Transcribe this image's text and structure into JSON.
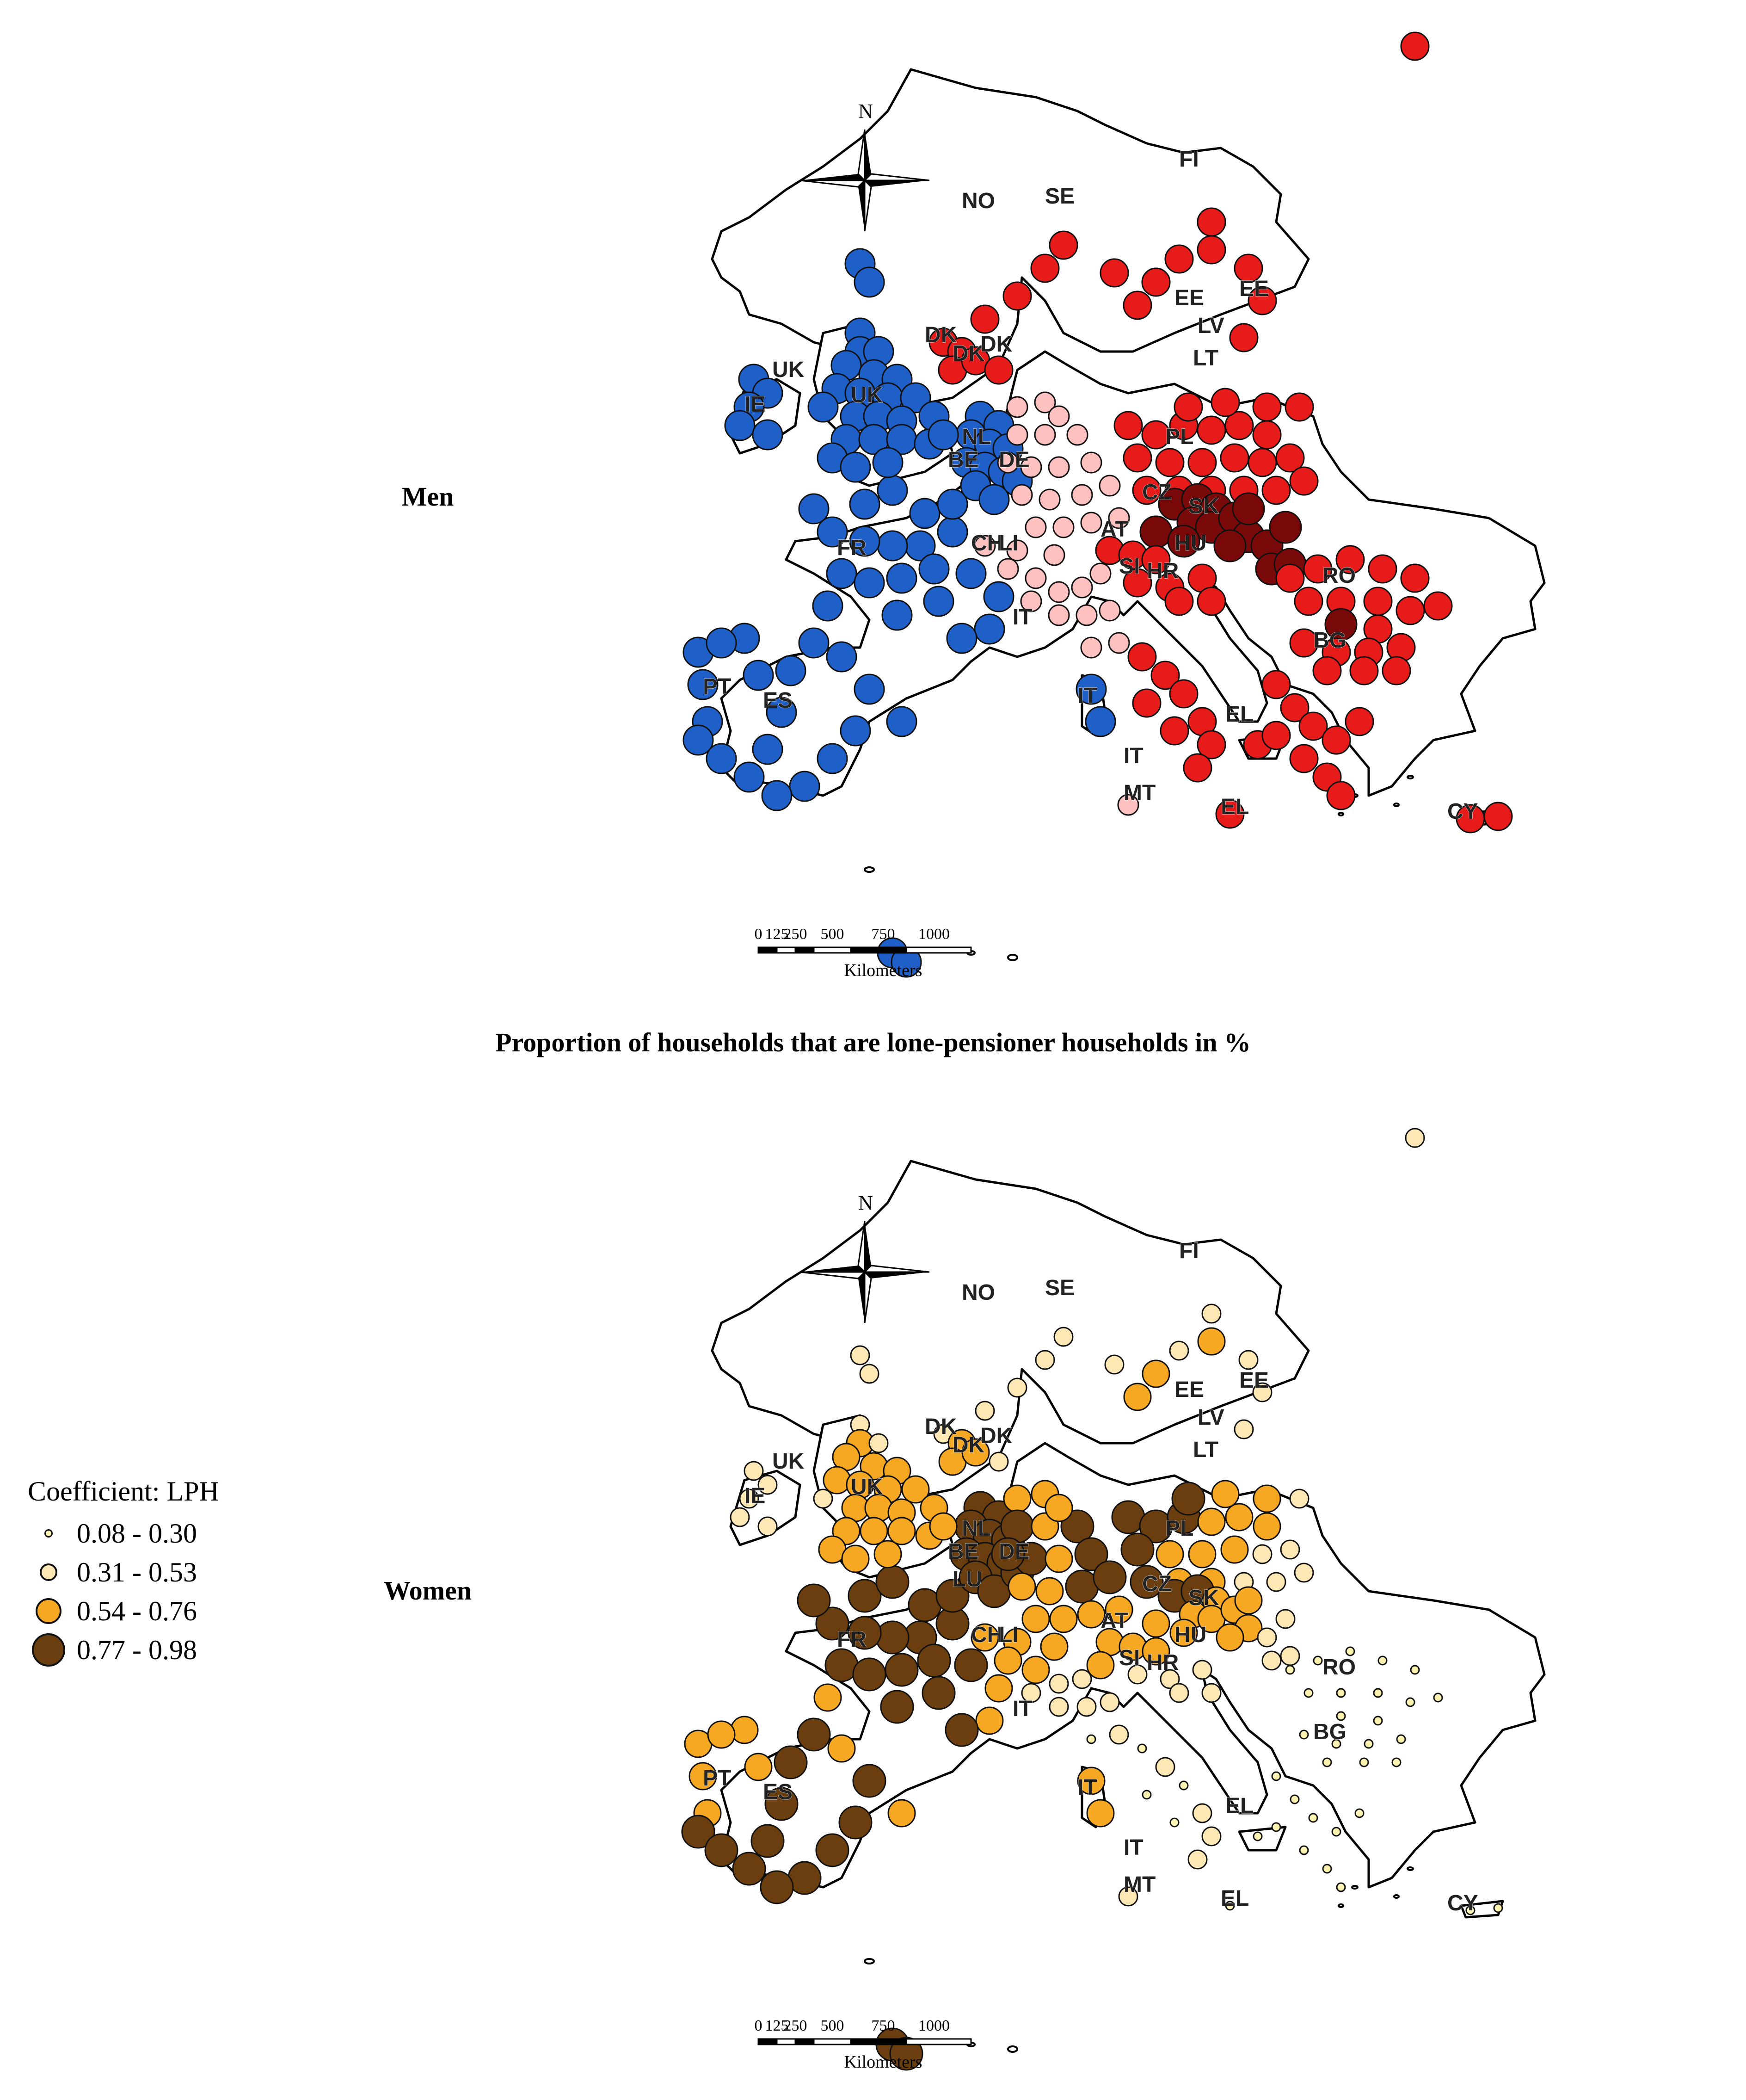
{
  "panels": [
    {
      "row_label": "Men",
      "north_label": "N",
      "scale_ticks": [
        "0",
        "125",
        "250",
        "500",
        "750",
        "1000"
      ],
      "scale_unit": "Kilometers",
      "country_labels": [
        "NO",
        "SE",
        "FI",
        "EE",
        "EE",
        "LV",
        "LT",
        "DK",
        "DK",
        "DK",
        "IE",
        "UK",
        "UK",
        "NL",
        "BE",
        "DE",
        "PL",
        "CZ",
        "SK",
        "AT",
        "HU",
        "CH",
        "LI",
        "SI",
        "HR",
        "RO",
        "BG",
        "FR",
        "IT",
        "IT",
        "IT",
        "MT",
        "PT",
        "ES",
        "EL",
        "EL",
        "CY"
      ],
      "point_colors": [
        "#1f5fc8",
        "#ffc0c0",
        "#e81b1b",
        "#7a0a0a"
      ]
    },
    {
      "row_label": "Women",
      "north_label": "N",
      "scale_ticks": [
        "0",
        "125",
        "250",
        "500",
        "750",
        "1000"
      ],
      "scale_unit": "Kilometers",
      "country_labels": [
        "NO",
        "SE",
        "FI",
        "EE",
        "EE",
        "LV",
        "LT",
        "DK",
        "DK",
        "DK",
        "IE",
        "UK",
        "UK",
        "NL",
        "BE",
        "LU",
        "DE",
        "PL",
        "CZ",
        "SK",
        "AT",
        "HU",
        "CH",
        "LI",
        "SI",
        "HR",
        "RO",
        "BG",
        "FR",
        "IT",
        "IT",
        "IT",
        "MT",
        "PT",
        "ES",
        "EL",
        "EL",
        "CY"
      ],
      "point_colors": [
        "#fdf3b0",
        "#fde7b5",
        "#f7a823",
        "#6b3e10"
      ]
    }
  ],
  "caption": "Proportion of households that are lone-pensioner households in %",
  "legend": {
    "title": "Coefficient: LPH",
    "items": [
      {
        "label": "0.08 - 0.30",
        "color": "#fdf3b0",
        "size": "small"
      },
      {
        "label": "0.31 - 0.53",
        "color": "#fde7b5",
        "size": "medium"
      },
      {
        "label": "0.54 - 0.76",
        "color": "#f7a823",
        "size": "large"
      },
      {
        "label": "0.77 - 0.98",
        "color": "#6b3e10",
        "size": "largest"
      }
    ]
  }
}
